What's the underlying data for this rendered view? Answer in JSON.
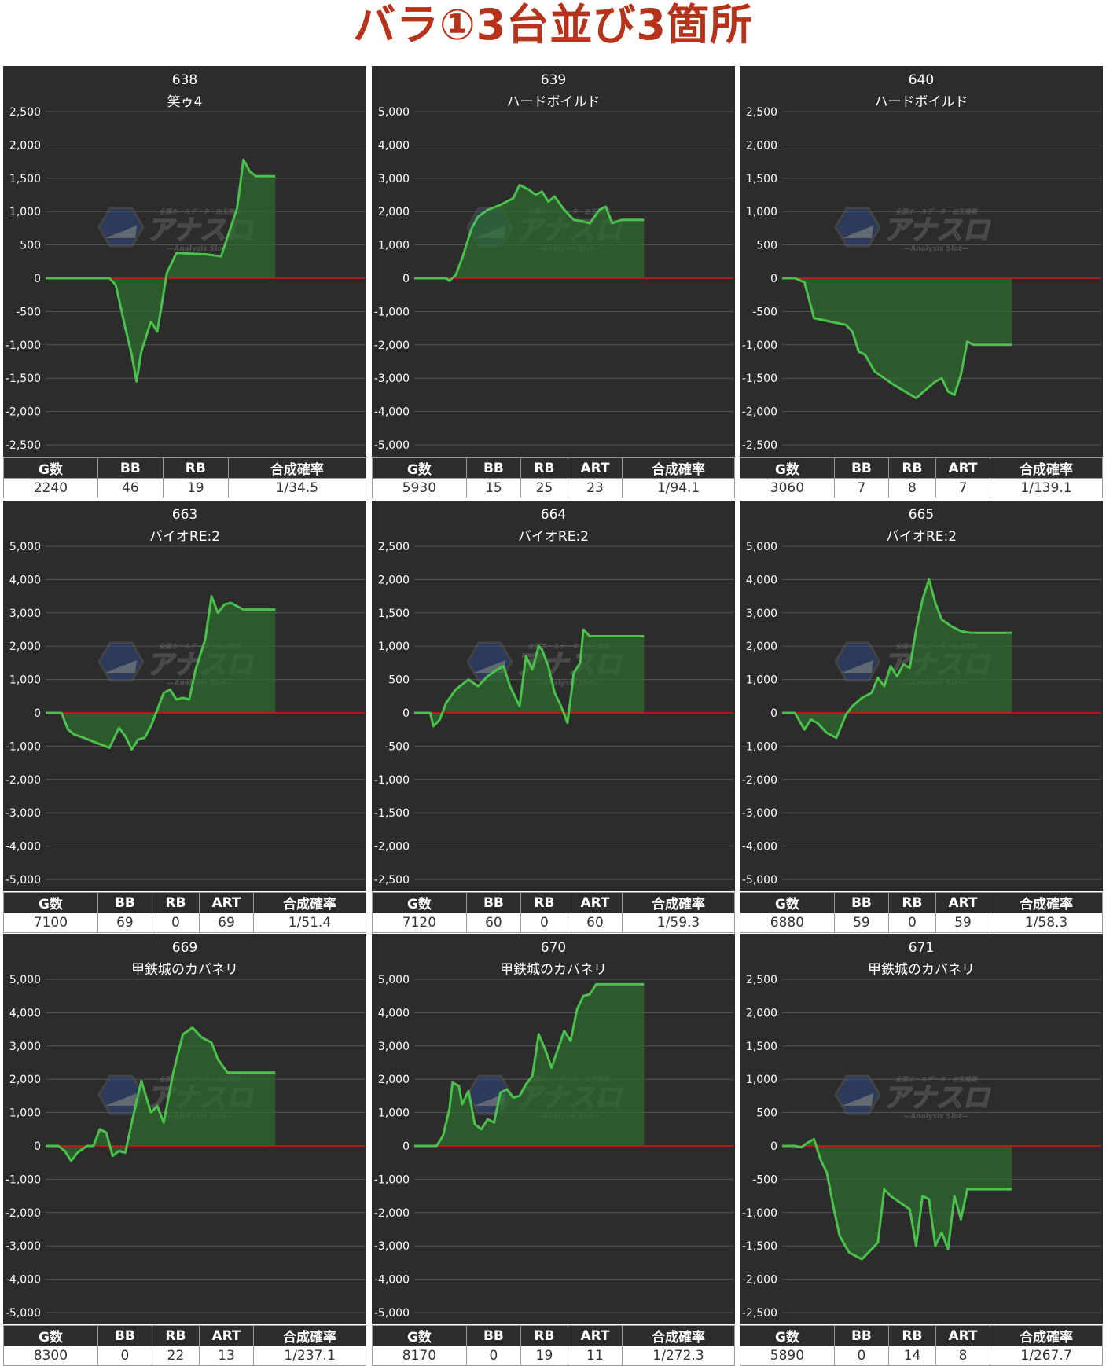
{
  "page": {
    "title": "バラ①3台並び3箇所"
  },
  "colors": {
    "line": "#4cc04c",
    "fill": "#2d6e2d",
    "zero_line": "#e01010",
    "panel_bg": "#2c2c2c",
    "title": "#b5331a"
  },
  "watermark": {
    "top": "全国ホールデータ・出玉情報",
    "main": "アナスロ",
    "sub": "—Analysis Slot—"
  },
  "chart_data": [
    {
      "type": "area",
      "machine": "638",
      "name": "笑ゥ4",
      "ylim": [
        -2500,
        2500
      ],
      "step": 500,
      "ticks": [
        "2,500",
        "2,000",
        "1,500",
        "1,000",
        "500",
        "0",
        "-500",
        "-1,000",
        "-1,500",
        "-2,000",
        "-2,500"
      ],
      "x": [
        0,
        0.03,
        0.05,
        0.08,
        0.1,
        0.12,
        0.15,
        0.17,
        0.2,
        0.22,
        0.25,
        0.27,
        0.285,
        0.3,
        0.33,
        0.35,
        0.38,
        0.41,
        0.45,
        0.5,
        0.55,
        0.6,
        0.62,
        0.64,
        0.66,
        0.68,
        0.7,
        0.72
      ],
      "values": [
        0,
        0,
        0,
        0,
        0,
        0,
        0,
        0,
        0,
        -100,
        -750,
        -1150,
        -1550,
        -1100,
        -650,
        -800,
        80,
        380,
        370,
        360,
        330,
        1050,
        1780,
        1600,
        1530,
        1530,
        1530,
        1530
      ],
      "stats_headers": [
        "G数",
        "BB",
        "RB",
        "合成確率"
      ],
      "stats_values": [
        "2240",
        "46",
        "19",
        "1/34.5"
      ]
    },
    {
      "type": "area",
      "machine": "639",
      "name": "ハードボイルド",
      "ylim": [
        -5000,
        5000
      ],
      "step": 1000,
      "ticks": [
        "5,000",
        "4,000",
        "3,000",
        "2,000",
        "1,000",
        "0",
        "-1,000",
        "-2,000",
        "-3,000",
        "-4,000",
        "-5,000"
      ],
      "x": [
        0,
        0.05,
        0.1,
        0.11,
        0.13,
        0.15,
        0.18,
        0.2,
        0.23,
        0.27,
        0.31,
        0.33,
        0.36,
        0.38,
        0.4,
        0.42,
        0.44,
        0.47,
        0.5,
        0.53,
        0.55,
        0.58,
        0.6,
        0.62,
        0.65,
        0.68,
        0.7,
        0.72
      ],
      "values": [
        0,
        0,
        0,
        -80,
        100,
        600,
        1500,
        1850,
        2050,
        2200,
        2400,
        2800,
        2650,
        2500,
        2600,
        2300,
        2450,
        2050,
        1750,
        1700,
        1650,
        2050,
        2150,
        1650,
        1750,
        1750,
        1750,
        1750
      ],
      "stats_headers": [
        "G数",
        "BB",
        "RB",
        "ART",
        "合成確率"
      ],
      "stats_values": [
        "5930",
        "15",
        "25",
        "23",
        "1/94.1"
      ]
    },
    {
      "type": "area",
      "machine": "640",
      "name": "ハードボイルド",
      "ylim": [
        -2500,
        2500
      ],
      "step": 500,
      "ticks": [
        "2,500",
        "2,000",
        "1,500",
        "1,000",
        "500",
        "0",
        "-500",
        "-1,000",
        "-1,500",
        "-2,000",
        "-2,500"
      ],
      "x": [
        0,
        0.04,
        0.07,
        0.1,
        0.15,
        0.2,
        0.22,
        0.24,
        0.26,
        0.29,
        0.35,
        0.42,
        0.48,
        0.5,
        0.52,
        0.54,
        0.56,
        0.58,
        0.6,
        0.62,
        0.64,
        0.66,
        0.68,
        0.7,
        0.72
      ],
      "values": [
        0,
        0,
        -60,
        -600,
        -650,
        -700,
        -800,
        -1100,
        -1150,
        -1400,
        -1600,
        -1800,
        -1550,
        -1500,
        -1700,
        -1750,
        -1450,
        -950,
        -1000,
        -1000,
        -1000,
        -1000,
        -1000,
        -1000,
        -1000
      ],
      "stats_headers": [
        "G数",
        "BB",
        "RB",
        "ART",
        "合成確率"
      ],
      "stats_values": [
        "3060",
        "7",
        "8",
        "7",
        "1/139.1"
      ]
    },
    {
      "type": "area",
      "machine": "663",
      "name": "バイオRE:2",
      "ylim": [
        -5000,
        5000
      ],
      "step": 1000,
      "ticks": [
        "5,000",
        "4,000",
        "3,000",
        "2,000",
        "1,000",
        "0",
        "-1,000",
        "-2,000",
        "-3,000",
        "-4,000",
        "-5,000"
      ],
      "x": [
        0,
        0.05,
        0.07,
        0.09,
        0.12,
        0.16,
        0.2,
        0.23,
        0.25,
        0.27,
        0.29,
        0.31,
        0.33,
        0.35,
        0.37,
        0.39,
        0.41,
        0.43,
        0.45,
        0.47,
        0.5,
        0.52,
        0.54,
        0.56,
        0.58,
        0.6,
        0.62,
        0.64,
        0.66,
        0.68,
        0.7,
        0.72
      ],
      "values": [
        0,
        0,
        -500,
        -650,
        -750,
        -900,
        -1050,
        -450,
        -700,
        -1100,
        -800,
        -750,
        -400,
        100,
        600,
        700,
        400,
        450,
        400,
        1300,
        2200,
        3500,
        3000,
        3250,
        3300,
        3200,
        3100,
        3100,
        3100,
        3100,
        3100,
        3100
      ],
      "stats_headers": [
        "G数",
        "BB",
        "RB",
        "ART",
        "合成確率"
      ],
      "stats_values": [
        "7100",
        "69",
        "0",
        "69",
        "1/51.4"
      ]
    },
    {
      "type": "area",
      "machine": "664",
      "name": "バイオRE:2",
      "ylim": [
        -2500,
        2500
      ],
      "step": 500,
      "ticks": [
        "2,500",
        "2,000",
        "1,500",
        "1,000",
        "500",
        "0",
        "-500",
        "-1,000",
        "-1,500",
        "-2,000",
        "-2,500"
      ],
      "x": [
        0,
        0.05,
        0.06,
        0.08,
        0.1,
        0.13,
        0.17,
        0.2,
        0.23,
        0.26,
        0.28,
        0.3,
        0.33,
        0.35,
        0.37,
        0.39,
        0.4,
        0.42,
        0.44,
        0.46,
        0.48,
        0.5,
        0.52,
        0.53,
        0.55,
        0.57,
        0.59,
        0.61,
        0.63,
        0.66,
        0.69,
        0.72
      ],
      "values": [
        0,
        0,
        -200,
        -100,
        150,
        350,
        500,
        400,
        550,
        650,
        700,
        400,
        100,
        850,
        650,
        1000,
        950,
        700,
        300,
        100,
        -150,
        600,
        750,
        1250,
        1150,
        1150,
        1150,
        1150,
        1150,
        1150,
        1150,
        1150
      ],
      "stats_headers": [
        "G数",
        "BB",
        "RB",
        "ART",
        "合成確率"
      ],
      "stats_values": [
        "7120",
        "60",
        "0",
        "60",
        "1/59.3"
      ]
    },
    {
      "type": "area",
      "machine": "665",
      "name": "バイオRE:2",
      "ylim": [
        -5000,
        5000
      ],
      "step": 1000,
      "ticks": [
        "5,000",
        "4,000",
        "3,000",
        "2,000",
        "1,000",
        "0",
        "-1,000",
        "-2,000",
        "-3,000",
        "-4,000",
        "-5,000"
      ],
      "x": [
        0,
        0.04,
        0.07,
        0.09,
        0.11,
        0.14,
        0.17,
        0.2,
        0.22,
        0.25,
        0.28,
        0.3,
        0.32,
        0.34,
        0.36,
        0.38,
        0.4,
        0.42,
        0.44,
        0.46,
        0.48,
        0.5,
        0.53,
        0.56,
        0.59,
        0.62,
        0.65,
        0.68,
        0.7,
        0.72
      ],
      "values": [
        0,
        0,
        -500,
        -200,
        -300,
        -600,
        -750,
        -50,
        200,
        450,
        600,
        1050,
        800,
        1400,
        1100,
        1450,
        1350,
        2500,
        3400,
        4000,
        3300,
        2800,
        2600,
        2450,
        2400,
        2400,
        2400,
        2400,
        2400,
        2400
      ],
      "stats_headers": [
        "G数",
        "BB",
        "RB",
        "ART",
        "合成確率"
      ],
      "stats_values": [
        "6880",
        "59",
        "0",
        "59",
        "1/58.3"
      ]
    },
    {
      "type": "area",
      "machine": "669",
      "name": "甲鉄城のカバネリ",
      "ylim": [
        -5000,
        5000
      ],
      "step": 1000,
      "ticks": [
        "5,000",
        "4,000",
        "3,000",
        "2,000",
        "1,000",
        "0",
        "-1,000",
        "-2,000",
        "-3,000",
        "-4,000",
        "-5,000"
      ],
      "x": [
        0,
        0.04,
        0.06,
        0.08,
        0.1,
        0.13,
        0.15,
        0.17,
        0.19,
        0.21,
        0.23,
        0.25,
        0.27,
        0.3,
        0.33,
        0.35,
        0.37,
        0.4,
        0.43,
        0.46,
        0.49,
        0.52,
        0.54,
        0.57,
        0.6,
        0.62,
        0.64,
        0.66,
        0.68,
        0.7,
        0.72
      ],
      "values": [
        0,
        0,
        -150,
        -450,
        -200,
        0,
        0,
        500,
        400,
        -300,
        -150,
        -200,
        700,
        1950,
        1000,
        1200,
        700,
        2200,
        3350,
        3550,
        3250,
        3100,
        2600,
        2200,
        2200,
        2200,
        2200,
        2200,
        2200,
        2200,
        2200
      ],
      "stats_headers": [
        "G数",
        "BB",
        "RB",
        "ART",
        "合成確率"
      ],
      "stats_values": [
        "8300",
        "0",
        "22",
        "13",
        "1/237.1"
      ]
    },
    {
      "type": "area",
      "machine": "670",
      "name": "甲鉄城のカバネリ",
      "ylim": [
        -5000,
        5000
      ],
      "step": 1000,
      "ticks": [
        "5,000",
        "4,000",
        "3,000",
        "2,000",
        "1,000",
        "0",
        "-1,000",
        "-2,000",
        "-3,000",
        "-4,000",
        "-5,000"
      ],
      "x": [
        0,
        0.06,
        0.07,
        0.09,
        0.11,
        0.12,
        0.14,
        0.15,
        0.17,
        0.19,
        0.21,
        0.23,
        0.25,
        0.27,
        0.29,
        0.31,
        0.33,
        0.35,
        0.37,
        0.39,
        0.41,
        0.43,
        0.45,
        0.47,
        0.49,
        0.51,
        0.53,
        0.55,
        0.57,
        0.59,
        0.61,
        0.63,
        0.66,
        0.69,
        0.72
      ],
      "values": [
        0,
        0,
        0,
        300,
        1100,
        1900,
        1800,
        1250,
        1650,
        650,
        500,
        800,
        700,
        1600,
        1700,
        1450,
        1500,
        1850,
        2100,
        3350,
        2900,
        2350,
        2900,
        3450,
        3150,
        4100,
        4500,
        4550,
        4850,
        4850,
        4850,
        4850,
        4850,
        4850,
        4850
      ],
      "stats_headers": [
        "G数",
        "BB",
        "RB",
        "ART",
        "合成確率"
      ],
      "stats_values": [
        "8170",
        "0",
        "19",
        "11",
        "1/272.3"
      ]
    },
    {
      "type": "area",
      "machine": "671",
      "name": "甲鉄城のカバネリ",
      "ylim": [
        -2500,
        2500
      ],
      "step": 500,
      "ticks": [
        "2,500",
        "2,000",
        "1,500",
        "1,000",
        "500",
        "0",
        "-500",
        "-1,000",
        "-1,500",
        "-2,000",
        "-2,500"
      ],
      "x": [
        0,
        0.04,
        0.06,
        0.08,
        0.1,
        0.12,
        0.14,
        0.16,
        0.18,
        0.21,
        0.25,
        0.3,
        0.32,
        0.34,
        0.37,
        0.4,
        0.42,
        0.44,
        0.46,
        0.48,
        0.5,
        0.52,
        0.54,
        0.56,
        0.58,
        0.6,
        0.62,
        0.64,
        0.66,
        0.68,
        0.7,
        0.72
      ],
      "values": [
        0,
        0,
        -20,
        50,
        100,
        -200,
        -400,
        -900,
        -1350,
        -1600,
        -1700,
        -1450,
        -650,
        -750,
        -850,
        -950,
        -1500,
        -750,
        -800,
        -1500,
        -1300,
        -1550,
        -750,
        -1100,
        -650,
        -650,
        -650,
        -650,
        -650,
        -650,
        -650,
        -650
      ],
      "stats_headers": [
        "G数",
        "BB",
        "RB",
        "ART",
        "合成確率"
      ],
      "stats_values": [
        "5890",
        "0",
        "14",
        "8",
        "1/267.7"
      ]
    }
  ]
}
